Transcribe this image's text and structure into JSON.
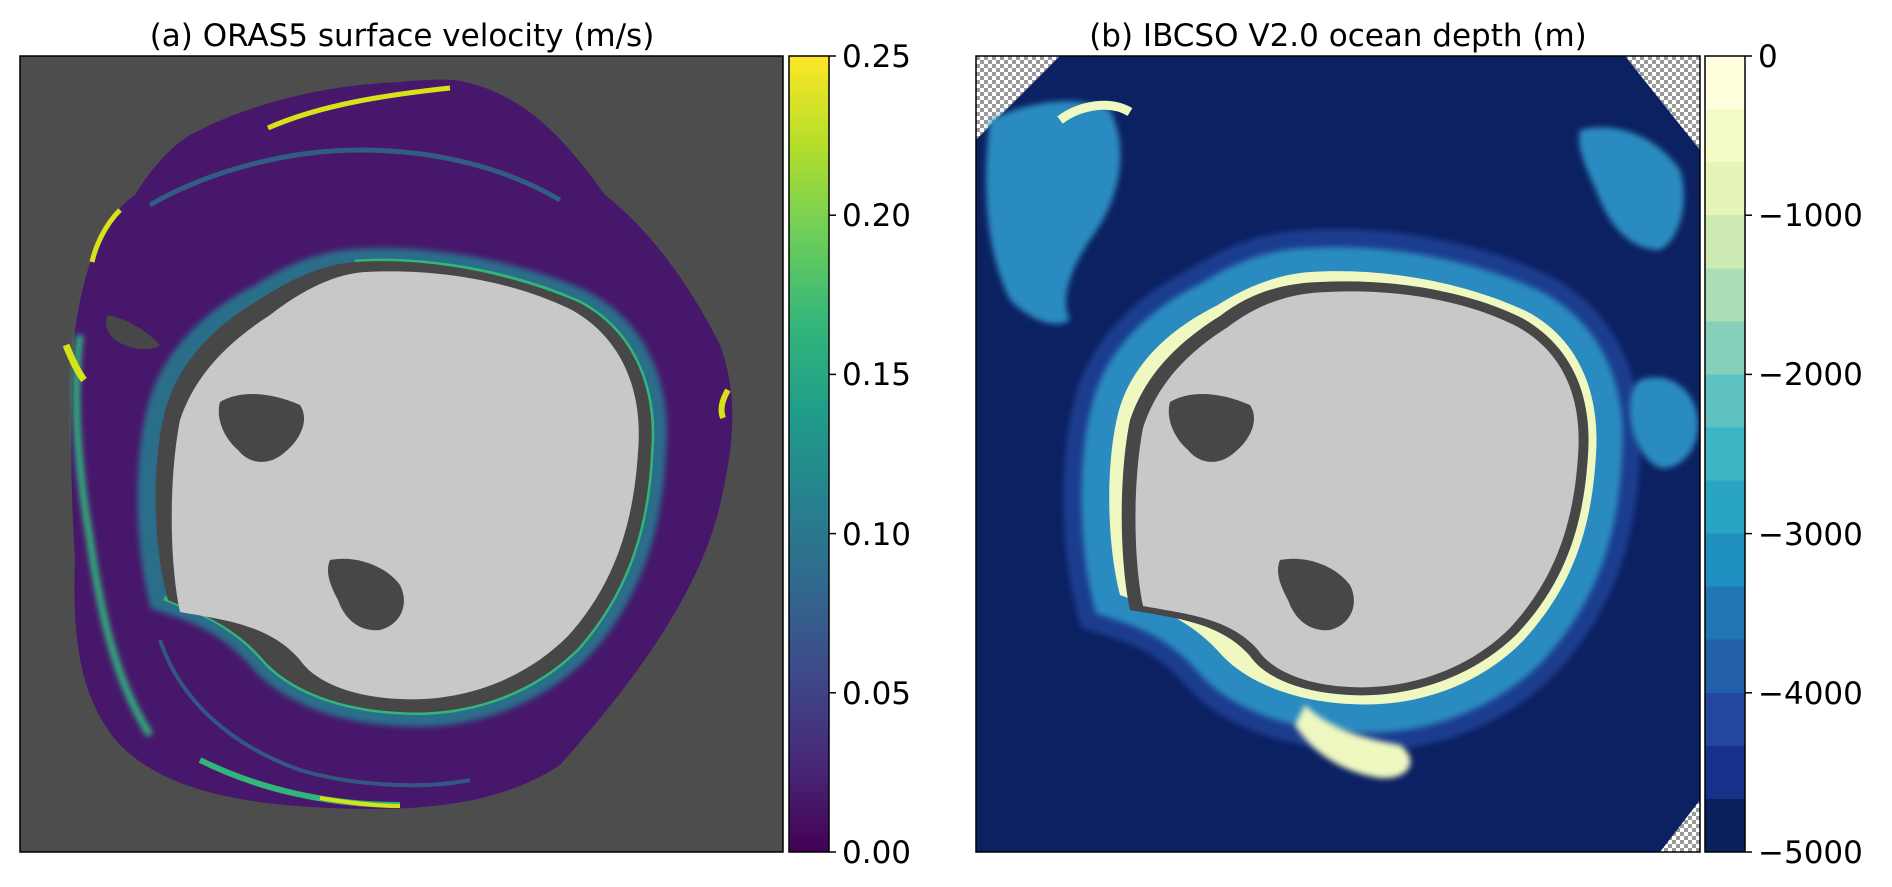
{
  "chart_data": [
    {
      "type": "heatmap",
      "title": "(a) ORAS5 surface velocity (m/s)",
      "colormap": "viridis",
      "colorbar": {
        "range": [
          0.0,
          0.25
        ],
        "ticks": [
          "0.00",
          "0.05",
          "0.10",
          "0.15",
          "0.20",
          "0.25"
        ],
        "tick_values": [
          0.0,
          0.05,
          0.1,
          0.15,
          0.2,
          0.25
        ],
        "colors": [
          "#440154",
          "#482878",
          "#3e4989",
          "#31688e",
          "#26828e",
          "#1f9e89",
          "#35b779",
          "#6ece58",
          "#b5de2b",
          "#fde725"
        ]
      },
      "colors": {
        "missing": "#4d4d4d",
        "land": "#c8c8c8",
        "ice_shelf": "#474747",
        "weak_flow": "#47176b",
        "medium_flow": "#2c6e8a",
        "strong_flow": "#31b57b",
        "fast_jet": "#d8e219"
      },
      "grid": false
    },
    {
      "type": "heatmap",
      "title": "(b) IBCSO V2.0 ocean depth (m)",
      "colormap": "YlGnBu_r (discrete)",
      "colorbar": {
        "range": [
          -5000,
          0
        ],
        "ticks": [
          "−5000",
          "−4000",
          "−3000",
          "−2000",
          "−1000",
          "0"
        ],
        "tick_values": [
          -5000,
          -4000,
          -3000,
          -2000,
          -1000,
          0
        ],
        "colors": [
          "#0a1f5c",
          "#17318a",
          "#22479c",
          "#235ea8",
          "#2177b5",
          "#1f8fc0",
          "#2aa4c3",
          "#3eb5c4",
          "#5ec3c0",
          "#86d0bb",
          "#abddb6",
          "#cdebb3",
          "#e6f5b7",
          "#f5fbc6",
          "#ffffdd"
        ]
      },
      "colors": {
        "no_data_hatch": "#9a9a9a",
        "land": "#c8c8c8",
        "ice_shelf": "#474747",
        "abyss": "#0c2162",
        "deep": "#1a3d8f",
        "slope": "#2a8bc0",
        "shelf": "#eef8c0"
      },
      "grid": false
    }
  ]
}
